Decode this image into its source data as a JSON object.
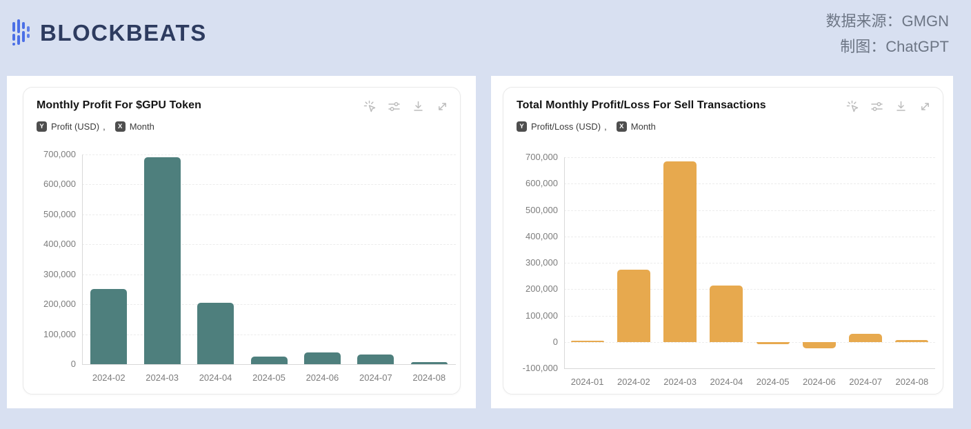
{
  "page": {
    "logo_text": "BLOCKBEATS",
    "source_label": "数据来源：GMGN",
    "credit_label": "制图：ChatGPT"
  },
  "colors": {
    "teal_bar": "#4e7f7d",
    "orange_bar": "#e7a94e",
    "page_background": "#d8e0f1",
    "logo_navy": "#2d3b5f",
    "logo_blue": "#4b6fe6"
  },
  "toolbar_icons": [
    "ai-assist-icon",
    "filter-sliders-icon",
    "download-icon",
    "expand-icon"
  ],
  "charts": [
    {
      "title": "Monthly Profit For $GPU Token",
      "legend": {
        "y_badge": "Y",
        "y_label": "Profit (USD)",
        "separator": ",",
        "x_badge": "X",
        "x_label": "Month"
      }
    },
    {
      "title": "Total Monthly Profit/Loss For Sell Transactions",
      "legend": {
        "y_badge": "Y",
        "y_label": "Profit/Loss (USD)",
        "separator": ",",
        "x_badge": "X",
        "x_label": "Month"
      }
    }
  ],
  "chart_data": [
    {
      "type": "bar",
      "title": "Monthly Profit For $GPU Token",
      "categories": [
        "2024-02",
        "2024-03",
        "2024-04",
        "2024-05",
        "2024-06",
        "2024-07",
        "2024-08"
      ],
      "values": [
        250000,
        690000,
        205000,
        25000,
        40000,
        32000,
        8000
      ],
      "xlabel": "Month",
      "ylabel": "Profit (USD)",
      "ylim": [
        0,
        700000
      ],
      "ytick_step": 100000,
      "bar_color": "#4e7f7d",
      "grid": true,
      "legend_position": "none"
    },
    {
      "type": "bar",
      "title": "Total Monthly Profit/Loss For Sell Transactions",
      "categories": [
        "2024-01",
        "2024-02",
        "2024-03",
        "2024-04",
        "2024-05",
        "2024-06",
        "2024-07",
        "2024-08"
      ],
      "values": [
        2000,
        275000,
        685000,
        215000,
        -8000,
        -25000,
        32000,
        6000
      ],
      "xlabel": "Month",
      "ylabel": "Profit/Loss (USD)",
      "ylim": [
        -100000,
        700000
      ],
      "ytick_step": 100000,
      "bar_color": "#e7a94e",
      "grid": true,
      "legend_position": "none"
    }
  ]
}
